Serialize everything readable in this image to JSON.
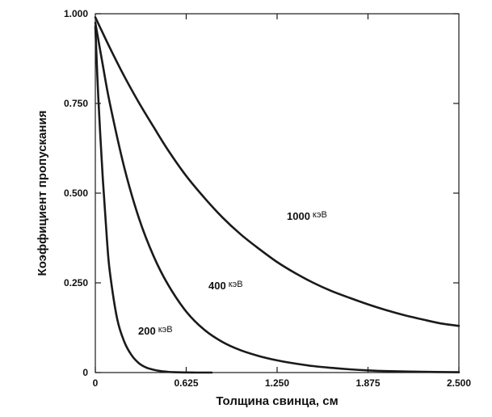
{
  "chart_data": {
    "type": "line",
    "title": "",
    "xlabel": "Толщина свинца, см",
    "ylabel": "Коэффициент пропускания",
    "xlim": [
      0,
      2.5
    ],
    "ylim": [
      0,
      1.0
    ],
    "x_ticks": [
      0,
      0.625,
      1.25,
      1.875,
      2.5
    ],
    "x_tick_labels": [
      "0",
      "0.625",
      "1.250",
      "1.875",
      "2.500"
    ],
    "y_ticks": [
      0,
      0.25,
      0.5,
      0.75,
      1.0
    ],
    "y_tick_labels": [
      "0",
      "0.250",
      "0.500",
      "0.750",
      "1.000"
    ],
    "grid": false,
    "legend": "inline curve labels",
    "line_color": "#1a1a1a",
    "series": [
      {
        "name": "1000 кэВ",
        "label_number": "1000",
        "label_unit": "кэВ",
        "x": [
          0,
          0.1,
          0.2,
          0.3,
          0.4,
          0.5,
          0.625,
          0.75,
          0.875,
          1.0,
          1.125,
          1.25,
          1.375,
          1.5,
          1.625,
          1.75,
          1.875,
          2.0,
          2.125,
          2.25,
          2.375,
          2.5
        ],
        "y": [
          0.99,
          0.905,
          0.825,
          0.752,
          0.685,
          0.62,
          0.548,
          0.487,
          0.432,
          0.385,
          0.345,
          0.308,
          0.277,
          0.25,
          0.227,
          0.208,
          0.19,
          0.174,
          0.16,
          0.148,
          0.137,
          0.13
        ]
      },
      {
        "name": "400 кэВ",
        "label_number": "400",
        "label_unit": "кэВ",
        "x": [
          0,
          0.05,
          0.1,
          0.2,
          0.3,
          0.4,
          0.5,
          0.625,
          0.75,
          0.875,
          1.0,
          1.125,
          1.25,
          1.375,
          1.5,
          1.625,
          1.75,
          1.875,
          2.0,
          2.25,
          2.5
        ],
        "y": [
          0.975,
          0.86,
          0.75,
          0.57,
          0.43,
          0.325,
          0.245,
          0.17,
          0.119,
          0.085,
          0.062,
          0.046,
          0.034,
          0.025,
          0.018,
          0.013,
          0.009,
          0.006,
          0.004,
          0.002,
          0.001
        ]
      },
      {
        "name": "200 кэВ",
        "label_number": "200",
        "label_unit": "кэВ",
        "x": [
          0,
          0.02,
          0.05,
          0.08,
          0.1,
          0.15,
          0.2,
          0.25,
          0.3,
          0.35,
          0.4,
          0.45,
          0.5,
          0.55,
          0.6,
          0.7,
          0.8
        ],
        "y": [
          0.965,
          0.77,
          0.55,
          0.37,
          0.28,
          0.15,
          0.085,
          0.048,
          0.026,
          0.014,
          0.008,
          0.004,
          0.002,
          0.001,
          0.0005,
          0.0,
          0.0
        ]
      }
    ]
  }
}
